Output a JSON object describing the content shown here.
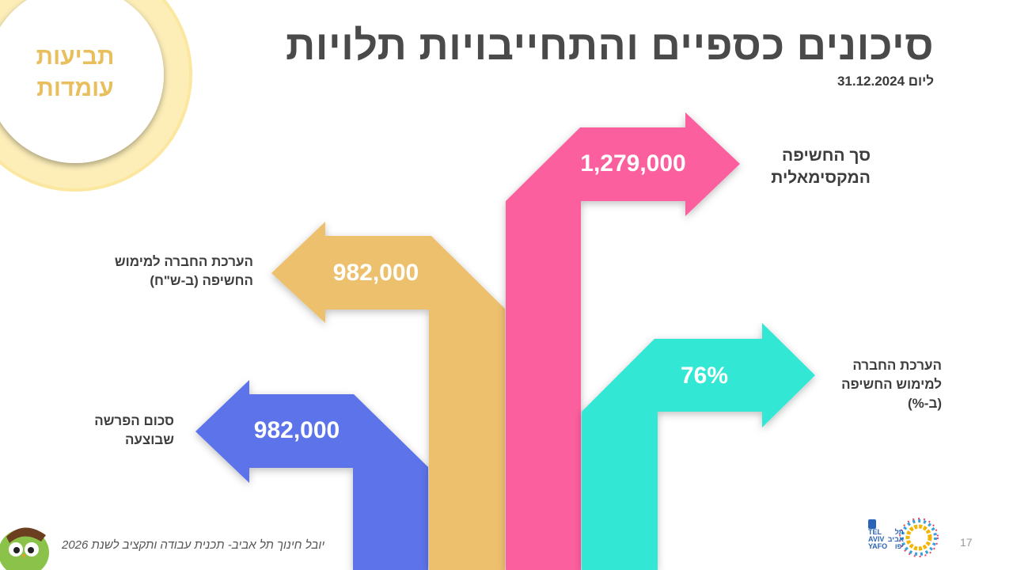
{
  "slide": {
    "title": "סיכונים כספיים והתחייבויות תלויות",
    "date": "ליום 31.12.2024",
    "badge": "תביעות עומדות",
    "page_number": "17",
    "footer": "יובל חינוך תל אביב- תכנית עבודה ותקציב לשנת 2026"
  },
  "arrows": [
    {
      "label": "סכום הפרשה שבוצעה",
      "value": "982,000",
      "color": "#5c73ea",
      "direction": "left"
    },
    {
      "label": "הערכת החברה למימוש החשיפה (ב-ש\"ח)",
      "value": "982,000",
      "color": "#edc06e",
      "direction": "left"
    },
    {
      "label": "סך החשיפה המקסימאלית",
      "value": "1,279,000",
      "color": "#fc5f9e",
      "direction": "right"
    },
    {
      "label": "הערכת החברה למימוש החשיפה (ב-%)",
      "value": "76%",
      "color": "#33e8d5",
      "direction": "right"
    }
  ],
  "logo": {
    "text_en": "TEL AVIV YAFO",
    "text_he": "תל אביב יפו"
  },
  "colors": {
    "badge_ring": "#fdeeb8",
    "title": "#4a4a4a",
    "badge_text": "#e9bf5e"
  }
}
